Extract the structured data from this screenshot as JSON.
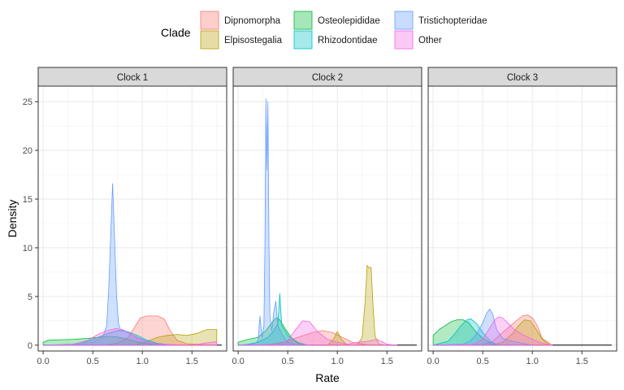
{
  "chart_data": {
    "type": "area",
    "xlabel": "Rate",
    "ylabel": "Density",
    "xlim": [
      -0.05,
      1.85
    ],
    "ylim": [
      -0.6,
      26.6
    ],
    "x_ticks": [
      0.0,
      0.5,
      1.0,
      1.5
    ],
    "x_tick_labels": [
      "0.0",
      "0.5",
      "1.0",
      "1.5"
    ],
    "y_ticks": [
      0,
      5,
      10,
      15,
      20,
      25
    ],
    "y_tick_labels": [
      "0",
      "5",
      "10",
      "15",
      "20",
      "25"
    ],
    "grid": true,
    "legend": {
      "title": "Clade",
      "position": "top",
      "entries": [
        {
          "name": "Dipnomorpha",
          "color": "#F8766D"
        },
        {
          "name": "Elpisostegalia",
          "color": "#B79F00"
        },
        {
          "name": "Osteolepididae",
          "color": "#00BA38"
        },
        {
          "name": "Rhizodontidae",
          "color": "#00BFC4"
        },
        {
          "name": "Tristichopteridae",
          "color": "#619CFF"
        },
        {
          "name": "Other",
          "color": "#F564E3"
        }
      ]
    },
    "panels": [
      {
        "title": "Clock 1",
        "series": [
          {
            "name": "Dipnomorpha",
            "x": [
              0.0,
              0.6,
              0.75,
              0.85,
              0.92,
              0.98,
              1.05,
              1.15,
              1.22,
              1.28,
              1.35,
              1.45,
              1.6,
              1.75
            ],
            "y": [
              0.0,
              0.0,
              0.2,
              0.7,
              1.8,
              2.8,
              3.0,
              3.0,
              2.7,
              1.5,
              0.5,
              0.15,
              0.05,
              0.0
            ]
          },
          {
            "name": "Elpisostegalia",
            "x": [
              0.0,
              0.8,
              0.95,
              1.05,
              1.15,
              1.25,
              1.35,
              1.45,
              1.55,
              1.65,
              1.75
            ],
            "y": [
              0.0,
              0.0,
              0.1,
              0.4,
              0.8,
              1.0,
              1.1,
              1.0,
              1.2,
              1.6,
              1.6
            ]
          },
          {
            "name": "Osteolepididae",
            "x": [
              0.0,
              0.05,
              0.15,
              0.3,
              0.45,
              0.55,
              0.65,
              0.75,
              0.85,
              0.95,
              1.05,
              1.15,
              1.3
            ],
            "y": [
              0.3,
              0.5,
              0.55,
              0.6,
              0.7,
              0.8,
              0.9,
              0.85,
              0.6,
              0.35,
              0.15,
              0.05,
              0.0
            ]
          },
          {
            "name": "Rhizodontidae",
            "x": [
              0.0,
              0.3,
              0.45,
              0.55,
              0.65,
              0.75,
              0.85,
              0.95,
              1.05,
              1.15,
              1.3
            ],
            "y": [
              0.0,
              0.1,
              0.4,
              0.8,
              1.2,
              1.5,
              1.4,
              1.0,
              0.5,
              0.2,
              0.0
            ]
          },
          {
            "name": "Tristichopteridae",
            "x": [
              0.0,
              0.3,
              0.5,
              0.6,
              0.64,
              0.66,
              0.68,
              0.7,
              0.72,
              0.74,
              0.76,
              0.78,
              0.85,
              0.95,
              1.1,
              1.3
            ],
            "y": [
              0.0,
              0.05,
              0.3,
              0.8,
              2.0,
              5.5,
              11.0,
              16.6,
              11.0,
              5.0,
              2.2,
              1.6,
              1.3,
              0.8,
              0.2,
              0.0
            ]
          },
          {
            "name": "Other",
            "x": [
              0.0,
              0.3,
              0.45,
              0.55,
              0.65,
              0.73,
              0.8,
              0.88,
              0.95,
              1.05,
              1.2,
              1.5,
              1.7,
              1.75
            ],
            "y": [
              0.0,
              0.05,
              0.5,
              1.1,
              1.5,
              1.7,
              1.6,
              1.2,
              0.7,
              0.3,
              0.1,
              0.0,
              0.3,
              0.35
            ]
          }
        ]
      },
      {
        "title": "Clock 2",
        "series": [
          {
            "name": "Dipnomorpha",
            "x": [
              0.0,
              0.3,
              0.45,
              0.6,
              0.75,
              0.85,
              0.95,
              1.05,
              1.15,
              1.3,
              1.45
            ],
            "y": [
              0.0,
              0.05,
              0.3,
              0.8,
              1.3,
              1.5,
              1.3,
              0.8,
              0.3,
              0.05,
              0.0
            ]
          },
          {
            "name": "Elpisostegalia",
            "x": [
              0.9,
              0.96,
              1.0,
              1.04,
              1.1,
              1.2,
              1.25,
              1.28,
              1.3,
              1.32,
              1.34,
              1.36,
              1.38,
              1.42,
              1.5
            ],
            "y": [
              0.0,
              0.6,
              1.4,
              0.6,
              0.0,
              0.0,
              0.8,
              4.5,
              8.2,
              7.9,
              8.0,
              4.0,
              0.9,
              0.1,
              0.0
            ]
          },
          {
            "name": "Osteolepididae",
            "x": [
              0.0,
              0.1,
              0.2,
              0.28,
              0.34,
              0.38,
              0.42,
              0.48,
              0.55,
              0.62,
              0.7
            ],
            "y": [
              0.3,
              0.6,
              0.8,
              1.5,
              2.3,
              2.8,
              2.6,
              1.6,
              0.6,
              0.1,
              0.0
            ]
          },
          {
            "name": "Rhizodontidae",
            "x": [
              0.0,
              0.1,
              0.2,
              0.3,
              0.36,
              0.4,
              0.42,
              0.44,
              0.5,
              0.6,
              0.7
            ],
            "y": [
              0.0,
              0.1,
              0.3,
              0.8,
              1.5,
              2.2,
              5.3,
              2.0,
              1.0,
              0.3,
              0.0
            ]
          },
          {
            "name": "Tristichopteridae",
            "x": [
              0.0,
              0.15,
              0.2,
              0.22,
              0.24,
              0.26,
              0.27,
              0.28,
              0.29,
              0.3,
              0.31,
              0.32,
              0.34,
              0.36,
              0.38,
              0.4,
              0.45,
              0.5,
              0.6
            ],
            "y": [
              0.0,
              0.1,
              0.4,
              3.0,
              0.8,
              2.0,
              10.0,
              25.3,
              18.0,
              25.0,
              11.0,
              3.0,
              1.5,
              3.5,
              4.5,
              2.0,
              1.0,
              0.3,
              0.0
            ]
          },
          {
            "name": "Other",
            "x": [
              0.0,
              0.4,
              0.5,
              0.58,
              0.65,
              0.72,
              0.8,
              0.9,
              1.0,
              1.1,
              1.2,
              1.3,
              1.4,
              1.5,
              1.6
            ],
            "y": [
              0.0,
              0.05,
              0.5,
              1.6,
              2.5,
              2.4,
              1.4,
              0.6,
              0.3,
              0.1,
              0.3,
              0.4,
              0.6,
              0.1,
              0.0
            ]
          }
        ]
      },
      {
        "title": "Clock 3",
        "series": [
          {
            "name": "Dipnomorpha",
            "x": [
              0.0,
              0.5,
              0.6,
              0.7,
              0.78,
              0.85,
              0.9,
              0.95,
              1.0,
              1.05,
              1.1,
              1.2
            ],
            "y": [
              0.0,
              0.05,
              0.4,
              1.3,
              2.0,
              2.6,
              3.0,
              3.1,
              2.8,
              2.0,
              0.7,
              0.0
            ]
          },
          {
            "name": "Elpisostegalia",
            "x": [
              0.0,
              0.6,
              0.7,
              0.8,
              0.86,
              0.92,
              0.98,
              1.04,
              1.1,
              1.18
            ],
            "y": [
              0.0,
              0.0,
              0.3,
              1.2,
              2.0,
              2.6,
              2.5,
              1.6,
              0.6,
              0.0
            ]
          },
          {
            "name": "Osteolepididae",
            "x": [
              0.0,
              0.06,
              0.12,
              0.18,
              0.24,
              0.3,
              0.36,
              0.42,
              0.5,
              0.6,
              0.7
            ],
            "y": [
              1.0,
              1.6,
              2.0,
              2.4,
              2.6,
              2.6,
              2.3,
              1.5,
              0.7,
              0.1,
              0.0
            ]
          },
          {
            "name": "Rhizodontidae",
            "x": [
              0.0,
              0.15,
              0.22,
              0.28,
              0.34,
              0.38,
              0.44,
              0.5,
              0.58,
              0.65
            ],
            "y": [
              0.0,
              0.4,
              1.2,
              2.0,
              2.6,
              2.7,
              2.2,
              1.3,
              0.4,
              0.0
            ]
          },
          {
            "name": "Tristichopteridae",
            "x": [
              0.0,
              0.3,
              0.38,
              0.44,
              0.5,
              0.54,
              0.57,
              0.6,
              0.64,
              0.7,
              0.8,
              0.9,
              1.0
            ],
            "y": [
              0.0,
              0.1,
              0.5,
              1.2,
              2.3,
              3.3,
              3.7,
              3.2,
              1.6,
              0.7,
              0.4,
              0.2,
              0.0
            ]
          },
          {
            "name": "Other",
            "x": [
              0.0,
              0.4,
              0.5,
              0.56,
              0.62,
              0.66,
              0.7,
              0.76,
              0.82,
              0.9,
              1.0,
              1.1,
              1.2
            ],
            "y": [
              0.0,
              0.05,
              0.6,
              1.6,
              2.6,
              2.9,
              2.8,
              2.2,
              1.6,
              1.1,
              0.6,
              0.2,
              0.0
            ]
          }
        ]
      }
    ]
  }
}
